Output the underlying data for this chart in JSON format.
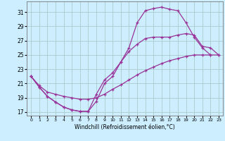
{
  "xlabel": "Windchill (Refroidissement éolien,°C)",
  "bg_color": "#cceeff",
  "grid_color": "#aacccc",
  "line_color": "#993399",
  "line1_x": [
    0,
    1,
    2,
    3,
    4,
    5,
    6,
    7,
    8,
    9,
    10,
    11,
    12,
    13,
    14,
    15,
    16,
    17,
    18,
    19,
    20,
    21,
    22
  ],
  "line1_y": [
    22.0,
    20.5,
    19.2,
    18.4,
    17.7,
    17.3,
    17.1,
    17.1,
    18.5,
    21.0,
    22.0,
    24.0,
    26.0,
    29.5,
    31.2,
    31.5,
    31.7,
    31.4,
    31.2,
    29.5,
    27.5,
    26.0,
    25.0
  ],
  "line2_x": [
    0,
    1,
    2,
    3,
    4,
    5,
    6,
    7,
    8,
    9,
    10,
    11,
    12,
    13,
    14,
    15,
    16,
    17,
    18,
    19,
    20,
    21,
    22,
    23
  ],
  "line2_y": [
    22.0,
    20.5,
    19.2,
    18.4,
    17.7,
    17.3,
    17.1,
    17.1,
    19.5,
    21.5,
    22.5,
    24.0,
    25.5,
    26.5,
    27.3,
    27.5,
    27.5,
    27.5,
    27.8,
    28.0,
    27.8,
    26.2,
    26.0,
    25.0
  ],
  "line3_x": [
    0,
    1,
    2,
    3,
    4,
    5,
    6,
    7,
    8,
    9,
    10,
    11,
    12,
    13,
    14,
    15,
    16,
    17,
    18,
    19,
    20,
    21,
    22,
    23
  ],
  "line3_y": [
    22.0,
    20.7,
    19.8,
    19.5,
    19.2,
    19.0,
    18.8,
    18.8,
    19.0,
    19.5,
    20.2,
    20.8,
    21.5,
    22.2,
    22.8,
    23.3,
    23.8,
    24.2,
    24.5,
    24.8,
    25.0,
    25.0,
    25.0,
    25.0
  ],
  "ylim": [
    16.5,
    32.5
  ],
  "xlim": [
    -0.5,
    23.5
  ],
  "yticks": [
    17,
    19,
    21,
    23,
    25,
    27,
    29,
    31
  ],
  "xticks": [
    0,
    1,
    2,
    3,
    4,
    5,
    6,
    7,
    8,
    9,
    10,
    11,
    12,
    13,
    14,
    15,
    16,
    17,
    18,
    19,
    20,
    21,
    22,
    23
  ]
}
